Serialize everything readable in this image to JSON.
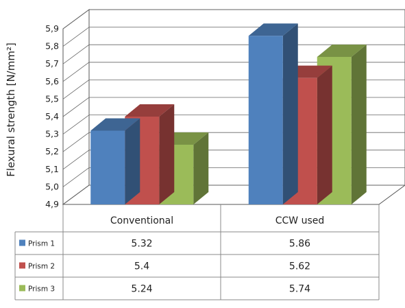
{
  "chart_data": {
    "type": "bar",
    "ylabel": "Flexural strength [N/mm²]",
    "ylim": [
      4.9,
      5.9
    ],
    "yticks": [
      "4,9",
      "5,0",
      "5,1",
      "5,2",
      "5,3",
      "5,4",
      "5,5",
      "5,6",
      "5,7",
      "5,8",
      "5,9"
    ],
    "categories": [
      "Conventional",
      "CCW used"
    ],
    "series": [
      {
        "name": "Prism 1",
        "values": [
          5.32,
          5.86
        ],
        "value_labels": [
          "5.32",
          "5.86"
        ],
        "color": "#4f81bd"
      },
      {
        "name": "Prism 2",
        "values": [
          5.4,
          5.62
        ],
        "value_labels": [
          "5.4",
          "5.62"
        ],
        "color": "#c0504d"
      },
      {
        "name": "Prism 3",
        "values": [
          5.24,
          5.74
        ],
        "value_labels": [
          "5.24",
          "5.74"
        ],
        "color": "#9bbb59"
      }
    ],
    "grid": true,
    "legend": "data-table"
  }
}
